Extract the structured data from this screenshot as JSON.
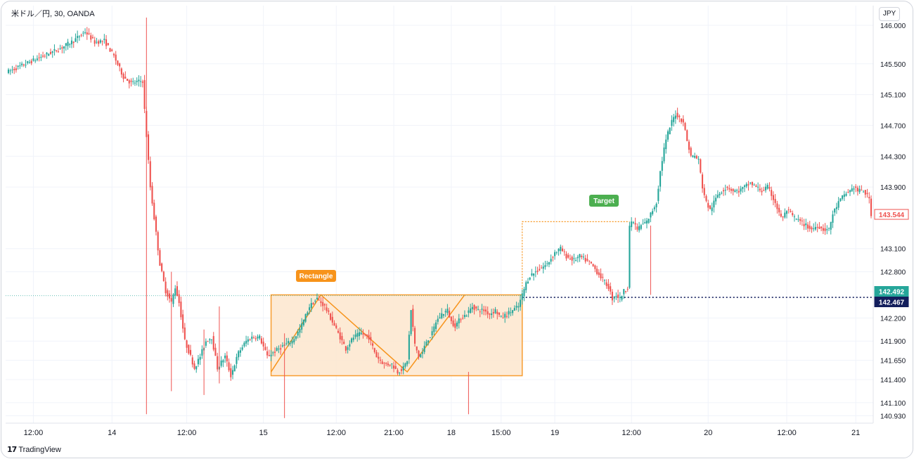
{
  "header": {
    "symbol": "米ドル／円, 30, OANDA",
    "currency": "JPY"
  },
  "footer": {
    "brand": "TradingView",
    "logo_icon": "tradingview-logo-icon"
  },
  "colors": {
    "up": "#26a69a",
    "down": "#ef5350",
    "pattern": "#f7931a",
    "pattern_fill": "#fde8d1",
    "target": "#4caf50",
    "current_price": "#26a69a",
    "reference_price": "#131e5c",
    "axis_text": "#131722",
    "baseline": "#26a69a"
  },
  "chart_data": {
    "type": "candlestick",
    "title": "",
    "xlabel": "",
    "ylabel": "",
    "ylim": [
      140.75,
      146.1
    ],
    "y_ticks": [
      "146.000",
      "145.500",
      "145.100",
      "144.700",
      "144.300",
      "143.900",
      "143.100",
      "142.800",
      "142.200",
      "141.900",
      "141.650",
      "141.400",
      "141.100",
      "140.930"
    ],
    "x_ticks": [
      "12:00",
      "14",
      "12:00",
      "15",
      "12:00",
      "21:00",
      "18",
      "15:00",
      "19",
      "12:00",
      "20",
      "12:00",
      "21"
    ],
    "grid": true,
    "annotations": {
      "rectangle_label": "Rectangle",
      "target_label": "Target",
      "rectangle_top": 142.5,
      "rectangle_bottom": 141.45,
      "target_level": 143.45
    },
    "price_labels": {
      "last": "143.544",
      "current": "142.492",
      "reference": "142.467"
    },
    "path": [
      [
        0,
        145.4
      ],
      [
        9,
        145.5
      ],
      [
        18,
        145.6
      ],
      [
        27,
        145.7
      ],
      [
        34,
        145.8
      ],
      [
        40,
        145.92
      ],
      [
        45,
        145.78
      ],
      [
        50,
        145.8
      ],
      [
        55,
        145.6
      ],
      [
        60,
        145.33
      ],
      [
        64,
        145.25
      ],
      [
        70,
        145.28
      ],
      [
        71,
        144.9
      ],
      [
        74,
        143.9
      ],
      [
        76,
        143.5
      ],
      [
        79,
        142.9
      ],
      [
        82,
        142.55
      ],
      [
        85,
        142.4
      ],
      [
        87,
        142.6
      ],
      [
        89,
        142.4
      ],
      [
        92,
        141.9
      ],
      [
        95,
        141.7
      ],
      [
        97,
        141.55
      ],
      [
        100,
        141.7
      ],
      [
        103,
        141.9
      ],
      [
        106,
        141.95
      ],
      [
        109,
        141.55
      ],
      [
        113,
        141.7
      ],
      [
        116,
        141.45
      ],
      [
        120,
        141.75
      ],
      [
        124,
        141.9
      ],
      [
        127,
        141.95
      ],
      [
        131,
        141.95
      ],
      [
        135,
        141.7
      ],
      [
        141,
        141.8
      ],
      [
        144,
        141.85
      ],
      [
        148,
        141.9
      ],
      [
        152,
        142.05
      ],
      [
        157,
        142.35
      ],
      [
        161,
        142.45
      ],
      [
        165,
        142.35
      ],
      [
        168,
        142.2
      ],
      [
        172,
        142.0
      ],
      [
        176,
        141.8
      ],
      [
        180,
        141.95
      ],
      [
        184,
        142.0
      ],
      [
        188,
        141.95
      ],
      [
        192,
        141.7
      ],
      [
        196,
        141.6
      ],
      [
        200,
        141.6
      ],
      [
        203,
        141.5
      ],
      [
        206,
        141.55
      ],
      [
        208,
        141.65
      ],
      [
        210,
        142.3
      ],
      [
        212,
        141.85
      ],
      [
        214,
        141.7
      ],
      [
        216,
        141.75
      ],
      [
        218,
        141.9
      ],
      [
        221,
        142.0
      ],
      [
        223,
        142.15
      ],
      [
        226,
        142.25
      ],
      [
        229,
        142.3
      ],
      [
        231,
        142.15
      ],
      [
        233,
        142.1
      ],
      [
        236,
        142.2
      ],
      [
        239,
        142.25
      ],
      [
        242,
        142.35
      ],
      [
        245,
        142.3
      ],
      [
        248,
        142.3
      ],
      [
        251,
        142.25
      ],
      [
        254,
        142.3
      ],
      [
        257,
        142.2
      ],
      [
        260,
        142.25
      ],
      [
        263,
        142.3
      ],
      [
        266,
        142.35
      ],
      [
        268,
        142.5
      ],
      [
        270,
        142.65
      ],
      [
        272,
        142.75
      ],
      [
        275,
        142.8
      ],
      [
        278,
        142.85
      ],
      [
        281,
        142.9
      ],
      [
        285,
        143.05
      ],
      [
        288,
        143.1
      ],
      [
        291,
        143.0
      ],
      [
        295,
        142.95
      ],
      [
        298,
        143.0
      ],
      [
        301,
        142.95
      ],
      [
        304,
        142.9
      ],
      [
        307,
        142.8
      ],
      [
        310,
        142.7
      ],
      [
        313,
        142.6
      ],
      [
        315,
        142.45
      ],
      [
        317,
        142.5
      ],
      [
        319,
        142.45
      ],
      [
        321,
        142.55
      ],
      [
        323,
        142.6
      ],
      [
        324,
        143.4
      ],
      [
        326,
        143.45
      ],
      [
        328,
        143.35
      ],
      [
        330,
        143.4
      ],
      [
        333,
        143.45
      ],
      [
        336,
        143.6
      ],
      [
        338,
        143.7
      ],
      [
        340,
        144.1
      ],
      [
        342,
        144.4
      ],
      [
        344,
        144.6
      ],
      [
        346,
        144.75
      ],
      [
        348,
        144.85
      ],
      [
        350,
        144.8
      ],
      [
        352,
        144.75
      ],
      [
        354,
        144.5
      ],
      [
        356,
        144.3
      ],
      [
        358,
        144.3
      ],
      [
        360,
        144.25
      ],
      [
        362,
        143.9
      ],
      [
        364,
        143.7
      ],
      [
        366,
        143.6
      ],
      [
        368,
        143.7
      ],
      [
        370,
        143.8
      ],
      [
        372,
        143.85
      ],
      [
        375,
        143.9
      ],
      [
        378,
        143.85
      ],
      [
        381,
        143.85
      ],
      [
        384,
        143.9
      ],
      [
        387,
        143.95
      ],
      [
        390,
        143.9
      ],
      [
        393,
        143.85
      ],
      [
        396,
        143.9
      ],
      [
        398,
        143.8
      ],
      [
        400,
        143.7
      ],
      [
        402,
        143.55
      ],
      [
        404,
        143.5
      ],
      [
        406,
        143.6
      ],
      [
        408,
        143.55
      ],
      [
        410,
        143.5
      ],
      [
        413,
        143.45
      ],
      [
        416,
        143.4
      ],
      [
        419,
        143.35
      ],
      [
        422,
        143.4
      ],
      [
        425,
        143.35
      ],
      [
        428,
        143.35
      ],
      [
        430,
        143.55
      ],
      [
        433,
        143.7
      ],
      [
        436,
        143.8
      ],
      [
        439,
        143.85
      ],
      [
        441,
        143.9
      ],
      [
        443,
        143.85
      ],
      [
        446,
        143.85
      ],
      [
        449,
        143.75
      ],
      [
        450,
        143.55
      ]
    ],
    "spikes": [
      [
        72,
        146.1,
        140.95
      ],
      [
        85,
        142.8,
        141.25
      ],
      [
        102,
        142.05,
        141.2
      ],
      [
        110,
        142.35,
        141.35
      ],
      [
        144,
        142.0,
        140.9
      ],
      [
        240,
        141.5,
        140.95
      ]
    ]
  }
}
